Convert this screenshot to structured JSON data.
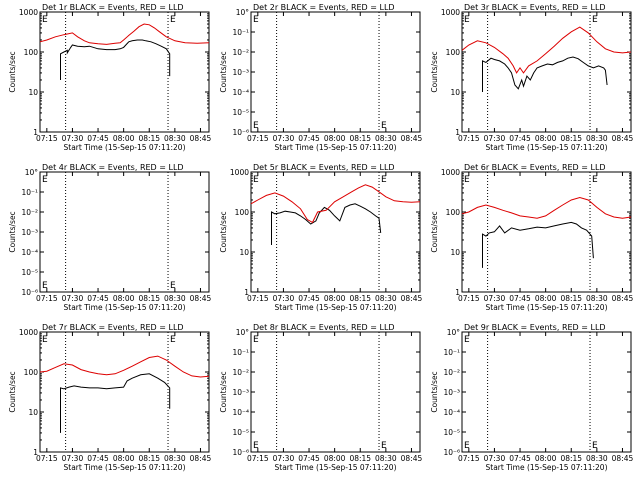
{
  "figure": {
    "xlabel": "Start Time (15-Sep-15 07:11:20)",
    "ylabel": "Counts/sec",
    "x_tick_labels": [
      "07:15",
      "07:30",
      "07:45",
      "08:00",
      "08:15",
      "08:30",
      "08:45"
    ],
    "y_tick_labels": [
      "1",
      "10",
      "100",
      "1000"
    ],
    "y_tick_labels_empty": [
      "10°",
      "10⁻¹",
      "10⁻²",
      "10⁻³",
      "10⁻⁴",
      "10⁻⁵",
      "10⁻⁶"
    ],
    "event_marker": "E",
    "colors": {
      "events": "#000000",
      "lld": "#dd0000"
    }
  },
  "chart_data": [
    {
      "type": "line",
      "title": "Det 1r BLACK = Events, RED = LLD",
      "empty": false,
      "yscale": "log",
      "ylim": [
        1,
        1000
      ],
      "xlim": [
        "07:11",
        "08:50"
      ],
      "markers": [
        "07:26",
        "08:26"
      ],
      "event_marks": [
        "07:11",
        "08:26"
      ],
      "series": [
        {
          "color": "events",
          "x": [
            "07:23",
            "07:23",
            "07:25",
            "07:27",
            "07:27",
            "07:29",
            "07:30",
            "07:33",
            "07:37",
            "07:40",
            "07:45",
            "07:50",
            "07:55",
            "07:58",
            "08:00",
            "08:03",
            "08:05",
            "08:08",
            "08:11",
            "08:13",
            "08:16",
            "08:19",
            "08:22",
            "08:25",
            "08:27",
            "08:27"
          ],
          "values": [
            20,
            90,
            100,
            110,
            95,
            130,
            150,
            140,
            135,
            140,
            120,
            115,
            115,
            120,
            130,
            180,
            190,
            200,
            200,
            190,
            180,
            160,
            140,
            120,
            90,
            25
          ]
        },
        {
          "color": "lld",
          "x": [
            "07:11",
            "07:15",
            "07:20",
            "07:25",
            "07:30",
            "07:33",
            "07:37",
            "07:40",
            "07:45",
            "07:50",
            "07:55",
            "07:58",
            "08:00",
            "08:03",
            "08:06",
            "08:09",
            "08:12",
            "08:15",
            "08:18",
            "08:21",
            "08:25",
            "08:30",
            "08:36",
            "08:43",
            "08:50"
          ],
          "values": [
            180,
            200,
            240,
            270,
            300,
            240,
            190,
            170,
            160,
            155,
            165,
            170,
            200,
            260,
            330,
            430,
            500,
            480,
            400,
            320,
            240,
            190,
            170,
            165,
            170
          ]
        }
      ]
    },
    {
      "type": "line",
      "title": "Det 2r BLACK = Events, RED = LLD",
      "empty": true,
      "yscale": "log",
      "ylim": [
        1e-06,
        1
      ],
      "xlim": [
        "07:11",
        "08:50"
      ],
      "markers": [
        "07:26",
        "08:26"
      ],
      "event_marks": [
        "07:11",
        "08:26"
      ],
      "series": []
    },
    {
      "type": "line",
      "title": "Det 3r BLACK = Events, RED = LLD",
      "empty": false,
      "yscale": "log",
      "ylim": [
        1,
        1000
      ],
      "xlim": [
        "07:11",
        "08:50"
      ],
      "markers": [
        "07:26",
        "08:26"
      ],
      "event_marks": [
        "07:11",
        "08:26"
      ],
      "series": [
        {
          "color": "events",
          "x": [
            "07:23",
            "07:23",
            "07:25",
            "07:28",
            "07:30",
            "07:33",
            "07:36",
            "07:38",
            "07:40",
            "07:42",
            "07:44",
            "07:46",
            "07:47",
            "07:49",
            "07:51",
            "07:53",
            "07:55",
            "07:58",
            "08:01",
            "08:04",
            "08:07",
            "08:10",
            "08:13",
            "08:16",
            "08:19",
            "08:22",
            "08:25",
            "08:28",
            "08:31",
            "08:34",
            "08:35",
            "08:36"
          ],
          "values": [
            10,
            60,
            55,
            70,
            65,
            60,
            50,
            40,
            30,
            15,
            12,
            20,
            14,
            25,
            20,
            30,
            40,
            45,
            50,
            48,
            55,
            60,
            70,
            75,
            68,
            55,
            45,
            40,
            45,
            40,
            35,
            15
          ]
        },
        {
          "color": "lld",
          "x": [
            "07:11",
            "07:15",
            "07:20",
            "07:25",
            "07:30",
            "07:35",
            "07:38",
            "07:41",
            "07:43",
            "07:45",
            "07:47",
            "07:50",
            "07:55",
            "08:00",
            "08:05",
            "08:10",
            "08:15",
            "08:20",
            "08:25",
            "08:30",
            "08:35",
            "08:40",
            "08:45",
            "08:50"
          ],
          "values": [
            110,
            150,
            190,
            170,
            130,
            90,
            70,
            45,
            30,
            40,
            30,
            45,
            60,
            90,
            140,
            220,
            320,
            420,
            300,
            180,
            120,
            100,
            95,
            100
          ]
        }
      ]
    },
    {
      "type": "line",
      "title": "Det 4r BLACK = Events, RED = LLD",
      "empty": true,
      "yscale": "log",
      "ylim": [
        1e-06,
        1
      ],
      "xlim": [
        "07:11",
        "08:50"
      ],
      "markers": [
        "07:26",
        "08:26"
      ],
      "event_marks": [
        "07:11",
        "08:26"
      ],
      "series": []
    },
    {
      "type": "line",
      "title": "Det 5r BLACK = Events, RED = LLD",
      "empty": false,
      "yscale": "log",
      "ylim": [
        1,
        1000
      ],
      "xlim": [
        "07:11",
        "08:50"
      ],
      "markers": [
        "07:26",
        "08:26"
      ],
      "event_marks": [
        "07:11",
        "08:26"
      ],
      "series": [
        {
          "color": "events",
          "x": [
            "07:23",
            "07:23",
            "07:25",
            "07:28",
            "07:31",
            "07:34",
            "07:37",
            "07:40",
            "07:43",
            "07:46",
            "07:49",
            "07:51",
            "07:54",
            "07:57",
            "08:00",
            "08:03",
            "08:06",
            "08:09",
            "08:12",
            "08:15",
            "08:18",
            "08:21",
            "08:24",
            "08:26",
            "08:27"
          ],
          "values": [
            15,
            100,
            90,
            95,
            105,
            100,
            95,
            80,
            65,
            50,
            60,
            95,
            130,
            110,
            80,
            60,
            130,
            150,
            160,
            140,
            120,
            100,
            80,
            70,
            30
          ]
        },
        {
          "color": "lld",
          "x": [
            "07:11",
            "07:15",
            "07:20",
            "07:25",
            "07:30",
            "07:35",
            "07:40",
            "07:44",
            "07:47",
            "07:50",
            "07:55",
            "08:00",
            "08:05",
            "08:10",
            "08:14",
            "08:18",
            "08:22",
            "08:26",
            "08:30",
            "08:35",
            "08:40",
            "08:45",
            "08:50"
          ],
          "values": [
            160,
            200,
            260,
            300,
            250,
            180,
            120,
            65,
            55,
            100,
            110,
            180,
            240,
            320,
            400,
            480,
            420,
            320,
            240,
            190,
            180,
            175,
            180
          ]
        }
      ]
    },
    {
      "type": "line",
      "title": "Det 6r BLACK = Events, RED = LLD",
      "empty": false,
      "yscale": "log",
      "ylim": [
        1,
        1000
      ],
      "xlim": [
        "07:11",
        "08:50"
      ],
      "markers": [
        "07:26",
        "08:26"
      ],
      "event_marks": [
        "07:11",
        "08:26"
      ],
      "series": [
        {
          "color": "events",
          "x": [
            "07:23",
            "07:23",
            "07:25",
            "07:27",
            "07:30",
            "07:33",
            "07:36",
            "07:40",
            "07:45",
            "07:50",
            "07:55",
            "08:00",
            "08:05",
            "08:10",
            "08:15",
            "08:18",
            "08:21",
            "08:24",
            "08:27",
            "08:28"
          ],
          "values": [
            4,
            28,
            25,
            30,
            32,
            45,
            30,
            40,
            35,
            38,
            42,
            40,
            45,
            50,
            55,
            50,
            40,
            35,
            25,
            7
          ]
        },
        {
          "color": "lld",
          "x": [
            "07:11",
            "07:15",
            "07:20",
            "07:25",
            "07:30",
            "07:35",
            "07:40",
            "07:45",
            "07:50",
            "07:55",
            "08:00",
            "08:05",
            "08:10",
            "08:15",
            "08:20",
            "08:25",
            "08:30",
            "08:35",
            "08:40",
            "08:45",
            "08:50"
          ],
          "values": [
            90,
            100,
            130,
            150,
            130,
            110,
            95,
            80,
            75,
            70,
            80,
            110,
            150,
            200,
            230,
            200,
            130,
            90,
            75,
            70,
            75
          ]
        }
      ]
    },
    {
      "type": "line",
      "title": "Det 7r BLACK = Events, RED = LLD",
      "empty": false,
      "yscale": "log",
      "ylim": [
        1,
        1000
      ],
      "xlim": [
        "07:11",
        "08:50"
      ],
      "markers": [
        "07:26",
        "08:26"
      ],
      "event_marks": [
        "07:11",
        "08:26"
      ],
      "series": [
        {
          "color": "events",
          "x": [
            "07:23",
            "07:23",
            "07:25",
            "07:28",
            "07:31",
            "07:35",
            "07:40",
            "07:45",
            "07:50",
            "07:55",
            "08:00",
            "08:02",
            "08:05",
            "08:10",
            "08:15",
            "08:20",
            "08:24",
            "08:27",
            "08:27"
          ],
          "values": [
            3,
            40,
            38,
            42,
            45,
            42,
            40,
            40,
            38,
            40,
            42,
            60,
            70,
            85,
            90,
            70,
            55,
            40,
            12
          ]
        },
        {
          "color": "lld",
          "x": [
            "07:11",
            "07:15",
            "07:20",
            "07:25",
            "07:30",
            "07:35",
            "07:40",
            "07:45",
            "07:50",
            "07:55",
            "08:00",
            "08:05",
            "08:10",
            "08:15",
            "08:20",
            "08:25",
            "08:30",
            "08:35",
            "08:40",
            "08:45",
            "08:50"
          ],
          "values": [
            100,
            105,
            130,
            160,
            150,
            115,
            100,
            90,
            85,
            90,
            110,
            140,
            180,
            230,
            250,
            200,
            140,
            100,
            80,
            75,
            78
          ]
        }
      ]
    },
    {
      "type": "line",
      "title": "Det 8r BLACK = Events, RED = LLD",
      "empty": true,
      "yscale": "log",
      "ylim": [
        1e-06,
        1
      ],
      "xlim": [
        "07:11",
        "08:50"
      ],
      "markers": [
        "07:26",
        "08:26"
      ],
      "event_marks": [
        "07:11",
        "08:26"
      ],
      "series": []
    },
    {
      "type": "line",
      "title": "Det 9r BLACK = Events, RED = LLD",
      "empty": true,
      "yscale": "log",
      "ylim": [
        1e-06,
        1
      ],
      "xlim": [
        "07:11",
        "08:50"
      ],
      "markers": [
        "07:26",
        "08:26"
      ],
      "event_marks": [
        "07:11",
        "08:26"
      ],
      "series": []
    }
  ]
}
